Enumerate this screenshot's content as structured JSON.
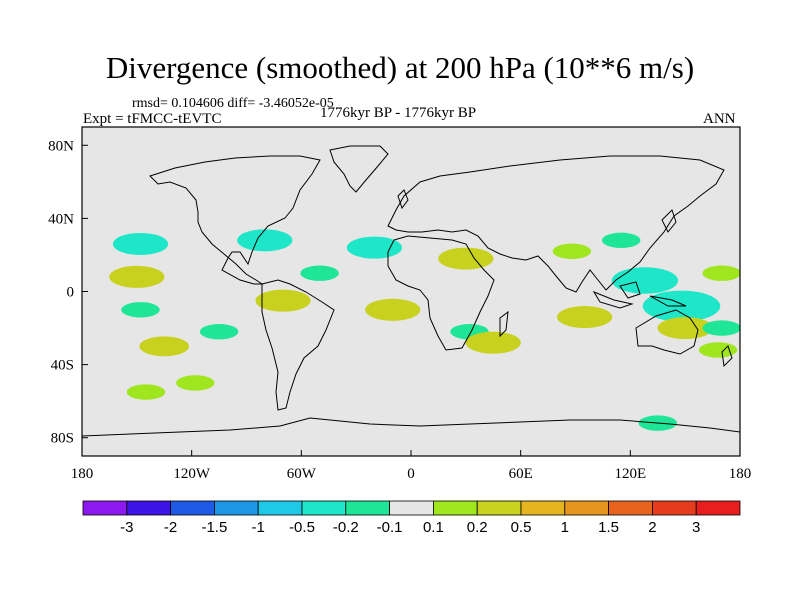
{
  "chart_data": {
    "type": "heatmap",
    "title": "Divergence (smoothed) at 200 hPa (10**6 m/s)",
    "stats_text": "rmsd= 0.104606 diff= -3.46052e-05",
    "experiment_text": "Expt = tFMCC-tEVTC",
    "period_text": "1776kyr BP - 1776kyr BP",
    "season": "ANN",
    "xlabel": "",
    "ylabel": "",
    "xlim": [
      -180,
      180
    ],
    "ylim": [
      -90,
      90
    ],
    "x_ticks": [
      {
        "value": -180,
        "label": "180"
      },
      {
        "value": -120,
        "label": "120W"
      },
      {
        "value": -60,
        "label": "60W"
      },
      {
        "value": 0,
        "label": "0"
      },
      {
        "value": 60,
        "label": "60E"
      },
      {
        "value": 120,
        "label": "120E"
      },
      {
        "value": 180,
        "label": "180"
      }
    ],
    "y_ticks": [
      {
        "value": 80,
        "label": "80N"
      },
      {
        "value": 40,
        "label": "40N"
      },
      {
        "value": 0,
        "label": "0"
      },
      {
        "value": -40,
        "label": "40S"
      },
      {
        "value": -80,
        "label": "80S"
      }
    ],
    "colorbar": {
      "levels": [
        "-3",
        "-2",
        "-1.5",
        "-1",
        "-0.5",
        "-0.2",
        "-0.1",
        "0.1",
        "0.2",
        "0.5",
        "1",
        "1.5",
        "2",
        "3"
      ],
      "colors": [
        "#8c1aef",
        "#3c14e6",
        "#1e5ae6",
        "#1e96e6",
        "#1ec8e6",
        "#1ee6c8",
        "#1ee696",
        "#e6e6e6",
        "#a0e61e",
        "#c8d21e",
        "#e6b41e",
        "#e6961e",
        "#e6641e",
        "#e63c1e",
        "#e61e1e"
      ]
    },
    "anomalies": [
      {
        "lon": -148,
        "lat": 26,
        "value": -0.3
      },
      {
        "lon": -150,
        "lat": 8,
        "value": 0.3
      },
      {
        "lon": -148,
        "lat": -10,
        "value": -0.15
      },
      {
        "lon": -135,
        "lat": -30,
        "value": 0.25
      },
      {
        "lon": -105,
        "lat": -22,
        "value": -0.15
      },
      {
        "lon": -118,
        "lat": -50,
        "value": 0.15
      },
      {
        "lon": -80,
        "lat": 28,
        "value": -0.3
      },
      {
        "lon": -50,
        "lat": 10,
        "value": -0.15
      },
      {
        "lon": -70,
        "lat": -5,
        "value": 0.3
      },
      {
        "lon": -20,
        "lat": 24,
        "value": -0.3
      },
      {
        "lon": -10,
        "lat": -10,
        "value": 0.3
      },
      {
        "lon": 30,
        "lat": 18,
        "value": 0.3
      },
      {
        "lon": 32,
        "lat": -22,
        "value": -0.15
      },
      {
        "lon": 45,
        "lat": -28,
        "value": 0.3
      },
      {
        "lon": 88,
        "lat": 22,
        "value": 0.15
      },
      {
        "lon": 95,
        "lat": -14,
        "value": 0.3
      },
      {
        "lon": 115,
        "lat": 28,
        "value": -0.15
      },
      {
        "lon": 128,
        "lat": 6,
        "value": -0.4
      },
      {
        "lon": 148,
        "lat": -8,
        "value": -0.5
      },
      {
        "lon": 150,
        "lat": -20,
        "value": 0.3
      },
      {
        "lon": 170,
        "lat": 10,
        "value": 0.15
      },
      {
        "lon": 170,
        "lat": -20,
        "value": -0.15
      },
      {
        "lon": 168,
        "lat": -32,
        "value": 0.15
      },
      {
        "lon": -145,
        "lat": -55,
        "value": 0.15
      },
      {
        "lon": 135,
        "lat": -72,
        "value": -0.15
      }
    ]
  }
}
